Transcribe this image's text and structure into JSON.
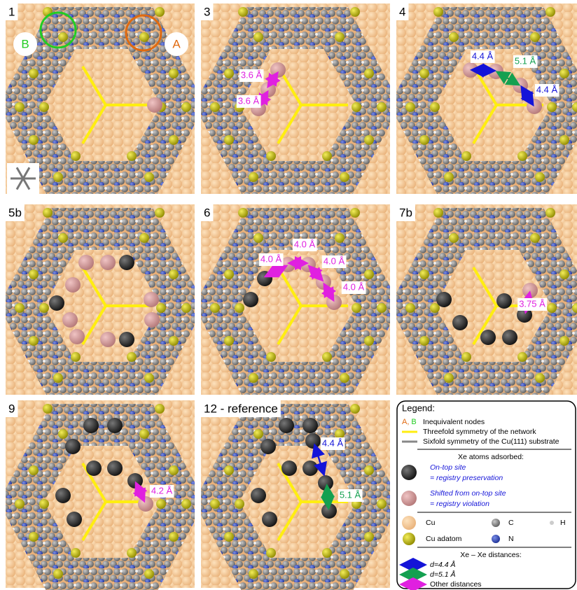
{
  "panels": [
    {
      "label": "1",
      "distances": []
    },
    {
      "label": "3",
      "distances": [
        "3.6 Å",
        "3.6 Å"
      ]
    },
    {
      "label": "4",
      "distances": [
        "4.4 Å",
        "5.1 Å",
        "4.4 Å"
      ]
    },
    {
      "label": "5b",
      "distances": []
    },
    {
      "label": "6",
      "distances": [
        "4.0 Å",
        "4.0 Å",
        "4.0 Å",
        "4.0 Å"
      ]
    },
    {
      "label": "7b",
      "distances": [
        "3.75 Å"
      ]
    },
    {
      "label": "9",
      "distances": [
        "4.2 Å"
      ]
    },
    {
      "label": "12 - reference",
      "distances": [
        "4.4 Å",
        "5.1 Å"
      ]
    }
  ],
  "nodes": {
    "a": "A",
    "b": "B"
  },
  "legend": {
    "title": "Legend:",
    "node_a": "A,",
    "node_b": "B",
    "nodes": "Inequivalent nodes",
    "threefold": "Threefold symmetry of the network",
    "sixfold": "Sixfold symmetry of the Cu(111) substrate",
    "xe_title": "Xe atoms adsorbed:",
    "ontop_1": "On-top site",
    "ontop_2": "= registry preservation",
    "shifted_1": "Shifted from on-top site",
    "shifted_2": "= registry violation",
    "cu": "Cu",
    "c": "C",
    "h": "H",
    "adatom": "Cu adatom",
    "n": "N",
    "dist_title": "Xe – Xe distances:",
    "d44": "d=4.4 Å",
    "d51": "d=5.1 Å",
    "other": "Other distances"
  }
}
